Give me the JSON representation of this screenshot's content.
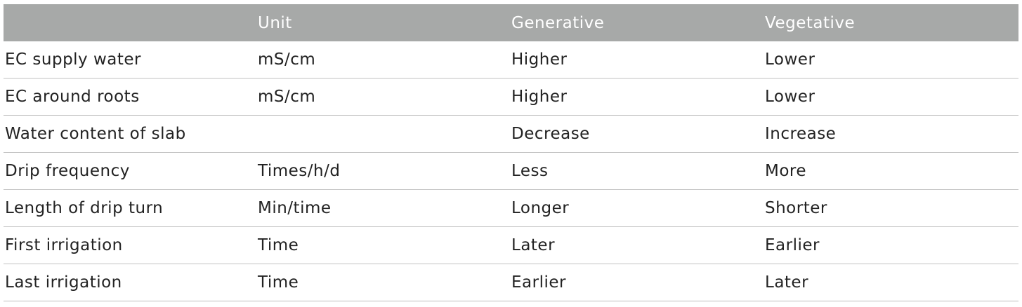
{
  "table": {
    "headers": [
      "",
      "Unit",
      "Generative",
      "Vegetative"
    ],
    "rows": [
      [
        "EC supply water",
        "mS/cm",
        "Higher",
        "Lower"
      ],
      [
        "EC around roots",
        "mS/cm",
        "Higher",
        "Lower"
      ],
      [
        "Water content of slab",
        "",
        "Decrease",
        "Increase"
      ],
      [
        "Drip frequency",
        "Times/h/d",
        "Less",
        "More"
      ],
      [
        "Length of drip turn",
        "Min/time",
        "Longer",
        "Shorter"
      ],
      [
        "First irrigation",
        "Time",
        "Later",
        "Earlier"
      ],
      [
        "Last irrigation",
        "Time",
        "Earlier",
        "Later"
      ]
    ]
  }
}
